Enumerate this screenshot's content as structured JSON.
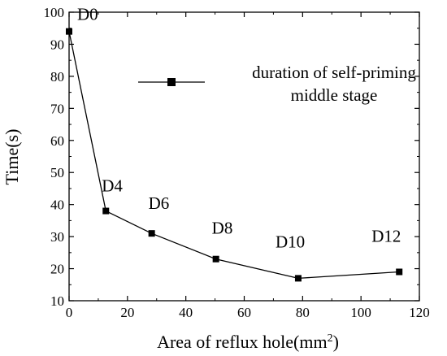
{
  "chart_data": {
    "type": "line",
    "x_label": "Area of reflux hole(mm",
    "x_label_superscript": "2",
    "x_label_suffix": ")",
    "y_label": "Time(s)",
    "xlim": [
      0,
      120
    ],
    "ylim": [
      10,
      100
    ],
    "x_ticks": [
      "0",
      "20",
      "40",
      "60",
      "80",
      "100",
      "120"
    ],
    "y_ticks": [
      "10",
      "20",
      "30",
      "40",
      "50",
      "60",
      "70",
      "80",
      "90",
      "100"
    ],
    "grid": false,
    "legend_position": "top-right",
    "series": [
      {
        "name_lines": [
          "duration of self-priming",
          "middle stage"
        ],
        "marker": "square",
        "color": "#000000",
        "points": [
          {
            "x": 0,
            "y": 94,
            "label": "D0"
          },
          {
            "x": 12.6,
            "y": 38,
            "label": "D4"
          },
          {
            "x": 28.3,
            "y": 31,
            "label": "D6"
          },
          {
            "x": 50.3,
            "y": 23,
            "label": "D8"
          },
          {
            "x": 78.5,
            "y": 17,
            "label": "D10"
          },
          {
            "x": 113.1,
            "y": 19,
            "label": "D12"
          }
        ]
      }
    ]
  }
}
